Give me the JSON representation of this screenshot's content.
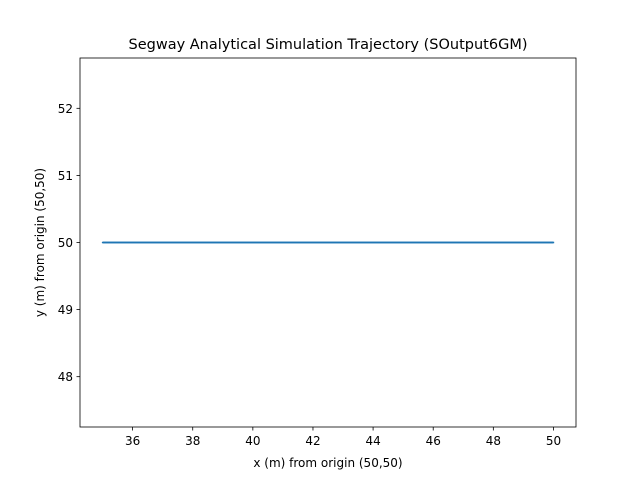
{
  "chart_data": {
    "type": "line",
    "title": "Segway Analytical Simulation Trajectory (SOutput6GM)",
    "xlabel": "x (m) from origin (50,50)",
    "ylabel": "y (m) from origin (50,50)",
    "xlim": [
      34.25,
      50.75
    ],
    "ylim": [
      47.25,
      52.75
    ],
    "xticks": [
      36,
      38,
      40,
      42,
      44,
      46,
      48,
      50
    ],
    "yticks": [
      48,
      49,
      50,
      51,
      52
    ],
    "grid": false,
    "series": [
      {
        "color": "#1f77b4",
        "x": [
          50,
          45,
          35,
          45
        ],
        "y": [
          50,
          50,
          50,
          50
        ]
      }
    ]
  }
}
